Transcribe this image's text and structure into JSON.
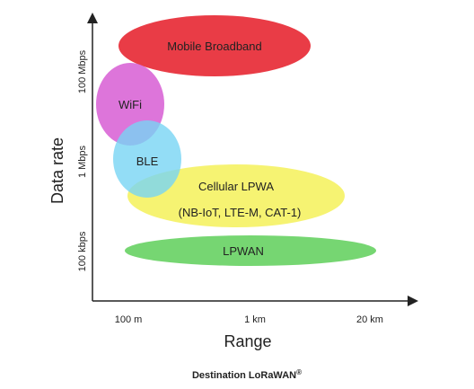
{
  "axes": {
    "y_title": "Data rate",
    "x_title": "Range",
    "y_ticks": [
      "100 Mbps",
      "1 Mbps",
      "100 kbps"
    ],
    "x_ticks": [
      "100 m",
      "1 km",
      "20 km"
    ]
  },
  "technologies": [
    {
      "label": "Mobile Broadband",
      "color": "#e8323c"
    },
    {
      "label": "WiFi",
      "color": "#d966d6"
    },
    {
      "label": "BLE",
      "color": "#78d4f4"
    },
    {
      "label": "Cellular LPWA",
      "sublabel": "(NB-IoT, LTE-M, CAT-1)",
      "color": "#f5f26a"
    },
    {
      "label": "LPWAN",
      "color": "#6fd46a"
    }
  ],
  "caption": {
    "text": "Destination LoRaWAN",
    "mark": "®"
  }
}
